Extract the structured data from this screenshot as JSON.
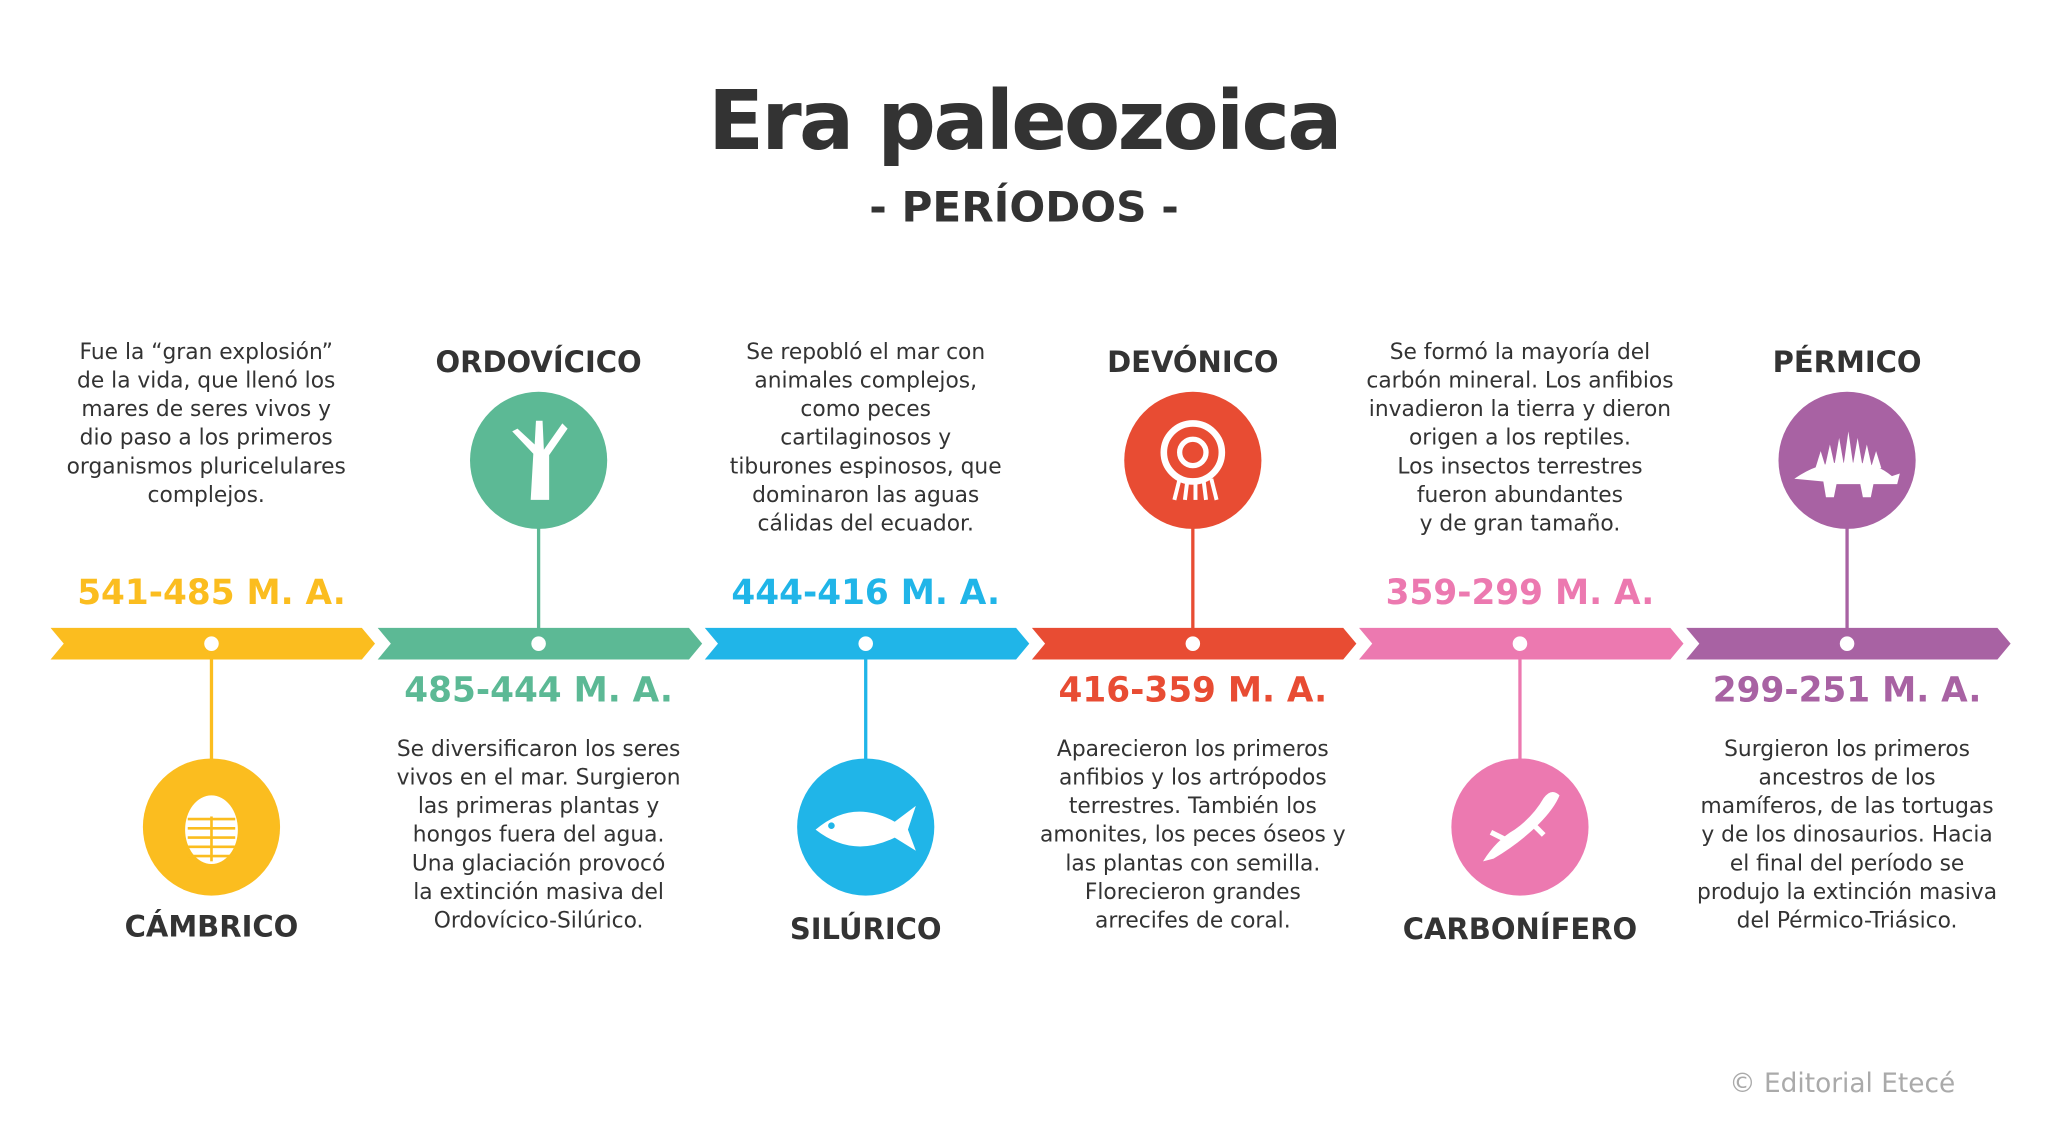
{
  "header": {
    "title": "Era paleozoica",
    "subtitle": "- PERÍODOS -"
  },
  "periods": [
    {
      "name": "CÁMBRICO",
      "dates": "541-485 M. A.",
      "color": "#fbbd1f",
      "description": [
        "Fue la “gran explosión”",
        "de la vida, que llenó los",
        "mares de seres vivos y",
        "dio paso a los primeros",
        "organismos pluricelulares",
        "complejos."
      ]
    },
    {
      "name": "ORDOVÍCICO",
      "dates": "485-444 M. A.",
      "color": "#5cb995",
      "description": [
        "Se diversificaron los seres",
        "vivos en el mar. Surgieron",
        "las primeras plantas y",
        "hongos fuera del agua.",
        "Una glaciación provocó",
        "la extinción masiva del",
        "Ordovícico-Silúrico."
      ]
    },
    {
      "name": "SILÚRICO",
      "dates": "444-416 M. A.",
      "color": "#20b5e8",
      "description": [
        "Se repobló el mar con",
        "animales complejos,",
        "como peces",
        "cartilaginosos y",
        "tiburones espinosos, que",
        "dominaron las aguas",
        "cálidas del ecuador."
      ]
    },
    {
      "name": "DEVÓNICO",
      "dates": "416-359 M. A.",
      "color": "#e84c33",
      "description": [
        "Aparecieron los primeros",
        "anfibios y los artrópodos",
        "terrestres. También los",
        "amonites, los peces óseos y",
        "las plantas con semilla.",
        "Florecieron grandes",
        "arrecifes de coral."
      ]
    },
    {
      "name": "CARBONÍFERO",
      "dates": "359-299 M. A.",
      "color": "#ec79b0",
      "description": [
        "Se formó la mayoría del",
        "carbón mineral. Los anfibios",
        "invadieron la tierra y dieron",
        "origen a los reptiles.",
        "Los insectos terrestres",
        "fueron abundantes",
        "y de gran tamaño."
      ]
    },
    {
      "name": "PÉRMICO",
      "dates": "299-251 M. A.",
      "color": "#a862a3",
      "description": [
        "Surgieron los primeros",
        "ancestros de los",
        "mamíferos, de las tortugas",
        "y de los dinosaurios. Hacia",
        "el final del período se",
        "produjo la extinción masiva",
        "del Pérmico-Triásico."
      ]
    }
  ],
  "footer": {
    "credit": "© Editorial Etecé"
  }
}
